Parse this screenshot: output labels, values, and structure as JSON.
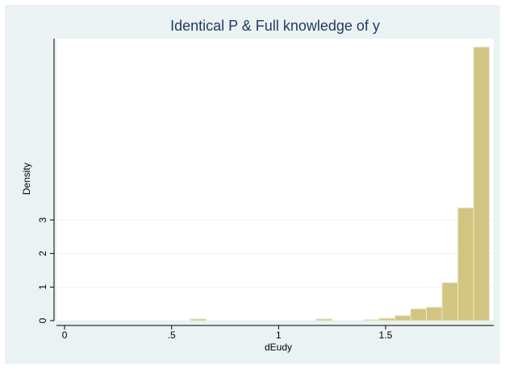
{
  "chart_data": {
    "type": "histogram",
    "title": "Identical P & Full knowledge of y",
    "x_label": "dEudy",
    "y_label": "Density",
    "bins": [
      0,
      0.0735,
      0.147,
      0.2205,
      0.294,
      0.3675,
      0.441,
      0.5145,
      0.588,
      0.6615,
      0.735,
      0.8085,
      0.882,
      0.9555,
      1.029,
      1.1025,
      1.176,
      1.2495,
      1.323,
      1.3965,
      1.47,
      1.5435,
      1.617,
      1.6905,
      1.764,
      1.8375,
      1.911,
      1.9845
    ],
    "values": [
      0,
      0,
      0,
      0,
      0,
      0,
      0,
      0,
      0.05,
      0,
      0,
      0,
      0,
      0,
      0,
      0,
      0.05,
      0,
      0,
      0.03,
      0.07,
      0.15,
      0.35,
      0.4,
      1.13,
      3.36,
      8.15
    ],
    "color": "#d2c582",
    "xlim": [
      -0.038,
      2.005
    ],
    "ylim": [
      0,
      8.4
    ],
    "xticks": [
      0,
      {
        "value": 0.5,
        "label": ".5"
      },
      1,
      1.5
    ],
    "yticks": [
      0,
      1,
      2,
      3
    ],
    "grid": true
  }
}
